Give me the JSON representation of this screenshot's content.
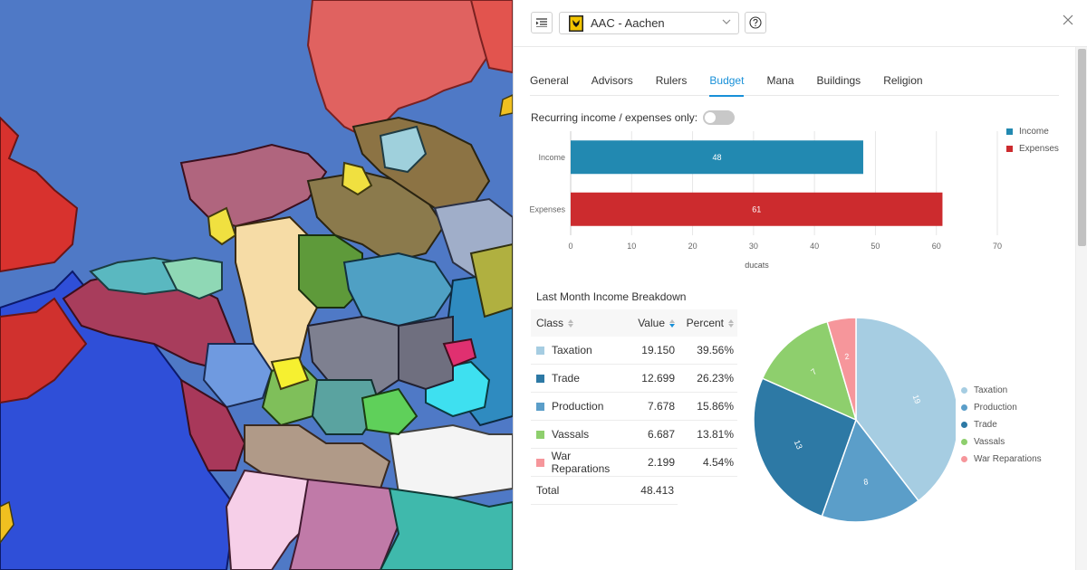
{
  "country_select": {
    "value": "AAC - Aachen"
  },
  "tabs": [
    {
      "label": "General"
    },
    {
      "label": "Advisors"
    },
    {
      "label": "Rulers"
    },
    {
      "label": "Budget",
      "active": true
    },
    {
      "label": "Mana"
    },
    {
      "label": "Buildings"
    },
    {
      "label": "Religion"
    }
  ],
  "recurring_toggle": {
    "label": "Recurring income / expenses only:",
    "on": false
  },
  "colors": {
    "income": "#2289b1",
    "expenses": "#cc2b2e",
    "taxation": "#a6cde2",
    "production": "#5b9ec9",
    "trade": "#2d79a5",
    "vassals": "#8ecf6d",
    "war_reparations": "#f6969b",
    "accent": "#1890d8",
    "map_sea": "#4f79c6"
  },
  "icons": {
    "menu": "list-indent-icon",
    "flag": "aachen-flag-icon",
    "dropdown": "chevron-down-icon",
    "help": "question-circle-icon",
    "close": "close-icon"
  },
  "chart_data": [
    {
      "type": "bar",
      "orientation": "horizontal",
      "categories": [
        "Income",
        "Expenses"
      ],
      "series": [
        {
          "name": "Income",
          "values": [
            48,
            null
          ]
        },
        {
          "name": "Expenses",
          "values": [
            null,
            61
          ]
        }
      ],
      "data_labels": [
        "48",
        "61"
      ],
      "xlabel": "ducats",
      "xlim": [
        0,
        70
      ],
      "xticks": [
        "0",
        "10",
        "20",
        "30",
        "40",
        "50",
        "60",
        "70"
      ],
      "legend": [
        "Income",
        "Expenses"
      ],
      "legend_position": "right",
      "grid": true
    },
    {
      "type": "pie",
      "categories": [
        "Taxation",
        "Production",
        "Trade",
        "Vassals",
        "War Reparations"
      ],
      "values": [
        19.15,
        7.678,
        12.699,
        6.687,
        2.199
      ],
      "data_labels": [
        "19",
        "8",
        "13",
        "7",
        "2"
      ],
      "legend": [
        "Taxation",
        "Production",
        "Trade",
        "Vassals",
        "War Reparations"
      ],
      "legend_position": "right"
    }
  ],
  "breakdown": {
    "title": "Last Month Income Breakdown",
    "headers": {
      "class": "Class",
      "value": "Value",
      "percent": "Percent"
    },
    "rows": [
      {
        "class": "Taxation",
        "value": "19.150",
        "percent": "39.56%",
        "color": "#a6cde2"
      },
      {
        "class": "Trade",
        "value": "12.699",
        "percent": "26.23%",
        "color": "#2d79a5"
      },
      {
        "class": "Production",
        "value": "7.678",
        "percent": "15.86%",
        "color": "#5b9ec9"
      },
      {
        "class": "Vassals",
        "value": "6.687",
        "percent": "13.81%",
        "color": "#8ecf6d"
      },
      {
        "class": "War Reparations",
        "value": "2.199",
        "percent": "4.54%",
        "color": "#f6969b"
      }
    ],
    "total": {
      "label": "Total",
      "value": "48.413"
    }
  }
}
